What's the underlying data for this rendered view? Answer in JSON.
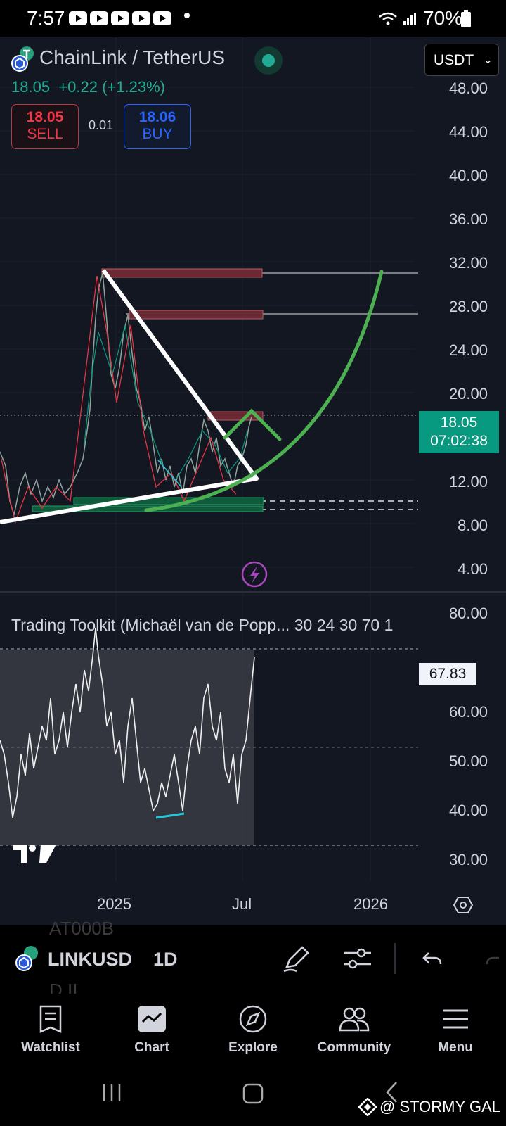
{
  "status_bar": {
    "time": "7:57",
    "battery": "70%"
  },
  "header": {
    "pair": "ChainLink / TetherUS",
    "price": "18.05",
    "change": "+0.22 (+1.23%)",
    "sell_price": "18.05",
    "sell_label": "SELL",
    "lot": "0.01",
    "buy_price": "18.06",
    "buy_label": "BUY",
    "currency": "USDT"
  },
  "price_axis": [
    "48.00",
    "44.00",
    "40.00",
    "36.00",
    "32.00",
    "28.00",
    "24.00",
    "20.00",
    "12.00",
    "8.00",
    "4.00"
  ],
  "last_price_tag": {
    "price": "18.05",
    "countdown": "07:02:38"
  },
  "indicator": {
    "title": "Trading Toolkit (Michaël van de Popp...",
    "params": "30 24 30 70 1",
    "axis": [
      "80.00",
      "60.00",
      "50.00",
      "40.00",
      "30.00"
    ],
    "value": "67.83"
  },
  "time_axis": [
    "2025",
    "Jul",
    "2026"
  ],
  "symbol_bar": {
    "symbol": "LINKUSD",
    "interval": "1D",
    "ghost_top": "AT000B",
    "ghost_bottom": "D.II"
  },
  "nav": {
    "watchlist": "Watchlist",
    "chart": "Chart",
    "explore": "Explore",
    "community": "Community",
    "menu": "Menu"
  },
  "watermark": "@ STORMY GAL",
  "colors": {
    "up": "#089981",
    "down": "#f23645",
    "drawing_green": "#4caf50",
    "background": "#131722"
  }
}
